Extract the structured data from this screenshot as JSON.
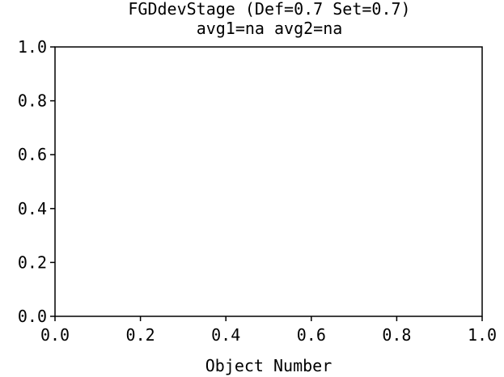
{
  "chart_data": {
    "type": "scatter",
    "title": "FGDdevStage (Def=0.7 Set=0.7)",
    "subtitle": "avg1=na avg2=na",
    "xlabel": "Object Number",
    "ylabel": "",
    "xlim": [
      0.0,
      1.0
    ],
    "ylim": [
      0.0,
      1.0
    ],
    "x_ticks": [
      "0.0",
      "0.2",
      "0.4",
      "0.6",
      "0.8",
      "1.0"
    ],
    "y_ticks": [
      "0.0",
      "0.2",
      "0.4",
      "0.6",
      "0.8",
      "1.0"
    ],
    "series": [],
    "grid": false
  }
}
